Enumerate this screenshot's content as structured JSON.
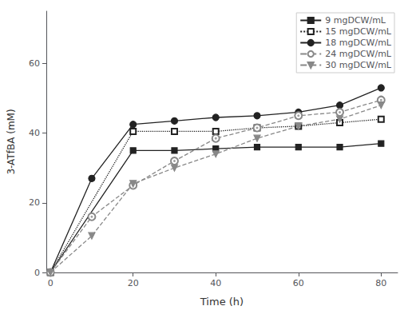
{
  "chart_data": {
    "type": "line",
    "xlabel": "Time (h)",
    "ylabel": "3-ATfBA (mM)",
    "series": [
      {
        "name": "9 mgDCW/mL",
        "x": [
          0,
          20,
          30,
          40,
          50,
          60,
          70,
          80
        ],
        "values": [
          0,
          35,
          35,
          35.5,
          36,
          36,
          36,
          37
        ],
        "color": "#222222",
        "marker": "square",
        "line_style": "solid"
      },
      {
        "name": "15 mgDCW/mL",
        "x": [
          0,
          20,
          30,
          40,
          50,
          60,
          70,
          80
        ],
        "values": [
          0,
          40.5,
          40.5,
          40.5,
          41.5,
          42,
          43,
          44
        ],
        "color": "#222222",
        "marker": "open-square",
        "line_style": "dotted"
      },
      {
        "name": "18 mgDCW/mL",
        "x": [
          0,
          10,
          20,
          30,
          40,
          50,
          60,
          70,
          80
        ],
        "values": [
          0,
          27,
          42.5,
          43.5,
          44.5,
          45,
          46,
          48,
          53
        ],
        "color": "#222222",
        "marker": "circle",
        "line_style": "solid"
      },
      {
        "name": "24 mgDCW/mL",
        "x": [
          0,
          10,
          20,
          30,
          40,
          50,
          60,
          70,
          80
        ],
        "values": [
          0,
          16,
          25,
          32,
          38.5,
          41.5,
          45,
          46,
          49.5
        ],
        "color": "#888888",
        "marker": "bullseye",
        "line_style": "dashed"
      },
      {
        "name": "30 mgDCW/mL",
        "x": [
          0,
          10,
          20,
          30,
          40,
          50,
          60,
          70,
          80
        ],
        "values": [
          0,
          10.5,
          25.5,
          30,
          34,
          38.5,
          42,
          44,
          48
        ],
        "color": "#888888",
        "marker": "triangle-down",
        "line_style": "dashed"
      }
    ],
    "xlim": [
      -1,
      84
    ],
    "ylim": [
      0,
      75
    ],
    "xticks": [
      0,
      20,
      40,
      60,
      80
    ],
    "yticks": [
      0,
      20,
      40,
      60
    ],
    "grid": false,
    "legend": "upper right"
  }
}
